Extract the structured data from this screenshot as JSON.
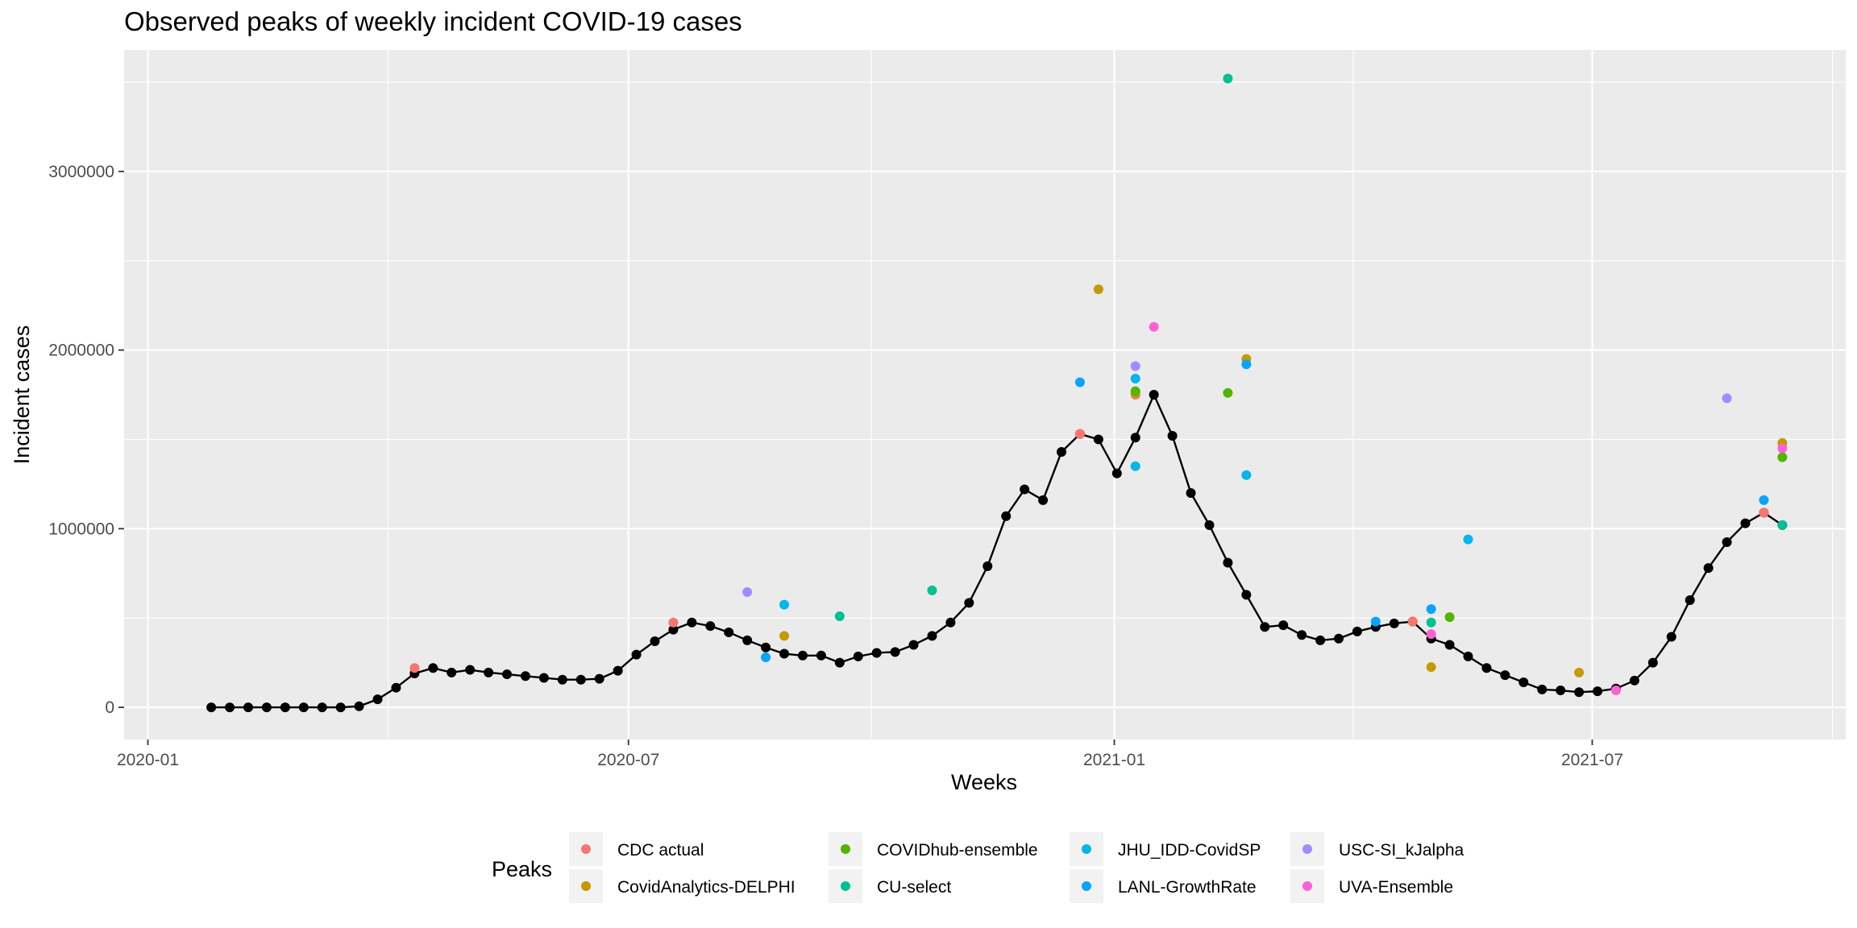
{
  "chart_data": {
    "type": "scatter",
    "title": "Observed peaks of weekly incident COVID-19 cases",
    "xlabel": "Weeks",
    "ylabel": "Incident cases",
    "x_ticks": [
      "2020-01",
      "2020-07",
      "2021-01",
      "2021-07"
    ],
    "y_ticks": [
      0,
      1000000,
      2000000,
      3000000
    ],
    "y_tick_labels": [
      "0",
      "1000000",
      "2000000",
      "3000000"
    ],
    "xlim": [
      "2019-12-23",
      "2021-10-05"
    ],
    "ylim": [
      -180000,
      3680000
    ],
    "grid": true,
    "legend": {
      "title": "Peaks",
      "position": "bottom"
    },
    "observed": {
      "start": "2020-01-25",
      "step_days": 7,
      "color": "#000000",
      "values": [
        0,
        0,
        0,
        0,
        0,
        0,
        0,
        0,
        6000,
        45000,
        110000,
        190000,
        220000,
        195000,
        210000,
        195000,
        185000,
        175000,
        165000,
        155000,
        155000,
        160000,
        205000,
        295000,
        370000,
        435000,
        475000,
        455000,
        420000,
        375000,
        335000,
        300000,
        290000,
        290000,
        250000,
        285000,
        305000,
        310000,
        350000,
        400000,
        475000,
        585000,
        790000,
        1070000,
        1220000,
        1160000,
        1430000,
        1530000,
        1500000,
        1310000,
        1510000,
        1750000,
        1520000,
        1200000,
        1020000,
        810000,
        630000,
        450000,
        460000,
        405000,
        375000,
        385000,
        425000,
        450000,
        470000,
        480000,
        385000,
        350000,
        285000,
        220000,
        180000,
        140000,
        100000,
        95000,
        85000,
        90000,
        105000,
        150000,
        250000,
        395000,
        600000,
        780000,
        925000,
        1030000,
        1090000,
        1020000
      ]
    },
    "series": [
      {
        "name": "CDC actual",
        "color": "#F8766D",
        "points": [
          [
            "2020-04-11",
            220000
          ],
          [
            "2020-07-18",
            475000
          ],
          [
            "2020-12-19",
            1530000
          ],
          [
            "2021-01-09",
            1750000
          ],
          [
            "2021-04-24",
            480000
          ],
          [
            "2021-09-04",
            1090000
          ]
        ]
      },
      {
        "name": "CovidAnalytics-DELPHI",
        "color": "#C49A00",
        "points": [
          [
            "2020-08-29",
            400000
          ],
          [
            "2020-12-26",
            2340000
          ],
          [
            "2021-01-09",
            1760000
          ],
          [
            "2021-02-20",
            1950000
          ],
          [
            "2021-05-01",
            225000
          ],
          [
            "2021-06-26",
            195000
          ],
          [
            "2021-09-11",
            1480000
          ]
        ]
      },
      {
        "name": "COVIDhub-ensemble",
        "color": "#53B400",
        "points": [
          [
            "2021-01-09",
            1770000
          ],
          [
            "2021-02-13",
            1760000
          ],
          [
            "2021-05-08",
            505000
          ],
          [
            "2021-09-11",
            1400000
          ]
        ]
      },
      {
        "name": "CU-select",
        "color": "#00C094",
        "points": [
          [
            "2020-09-19",
            510000
          ],
          [
            "2020-10-24",
            655000
          ],
          [
            "2021-02-13",
            3520000
          ],
          [
            "2021-05-01",
            475000
          ],
          [
            "2021-09-11",
            1020000
          ]
        ]
      },
      {
        "name": "JHU_IDD-CovidSP",
        "color": "#00B6EB",
        "points": [
          [
            "2020-08-29",
            575000
          ],
          [
            "2021-01-09",
            1350000
          ],
          [
            "2021-01-09",
            1840000
          ],
          [
            "2021-02-20",
            1300000
          ],
          [
            "2021-05-15",
            940000
          ]
        ]
      },
      {
        "name": "LANL-GrowthRate",
        "color": "#06A4FF",
        "points": [
          [
            "2020-08-22",
            280000
          ],
          [
            "2020-12-19",
            1820000
          ],
          [
            "2021-02-20",
            1920000
          ],
          [
            "2021-04-10",
            480000
          ],
          [
            "2021-05-01",
            550000
          ],
          [
            "2021-09-04",
            1160000
          ]
        ]
      },
      {
        "name": "USC-SI_kJalpha",
        "color": "#A58AFF",
        "points": [
          [
            "2020-08-15",
            645000
          ],
          [
            "2021-01-09",
            1910000
          ],
          [
            "2021-08-21",
            1730000
          ]
        ]
      },
      {
        "name": "UVA-Ensemble",
        "color": "#FB61D7",
        "points": [
          [
            "2021-01-16",
            2130000
          ],
          [
            "2021-05-01",
            410000
          ],
          [
            "2021-07-10",
            95000
          ],
          [
            "2021-09-11",
            1450000
          ]
        ]
      }
    ]
  }
}
